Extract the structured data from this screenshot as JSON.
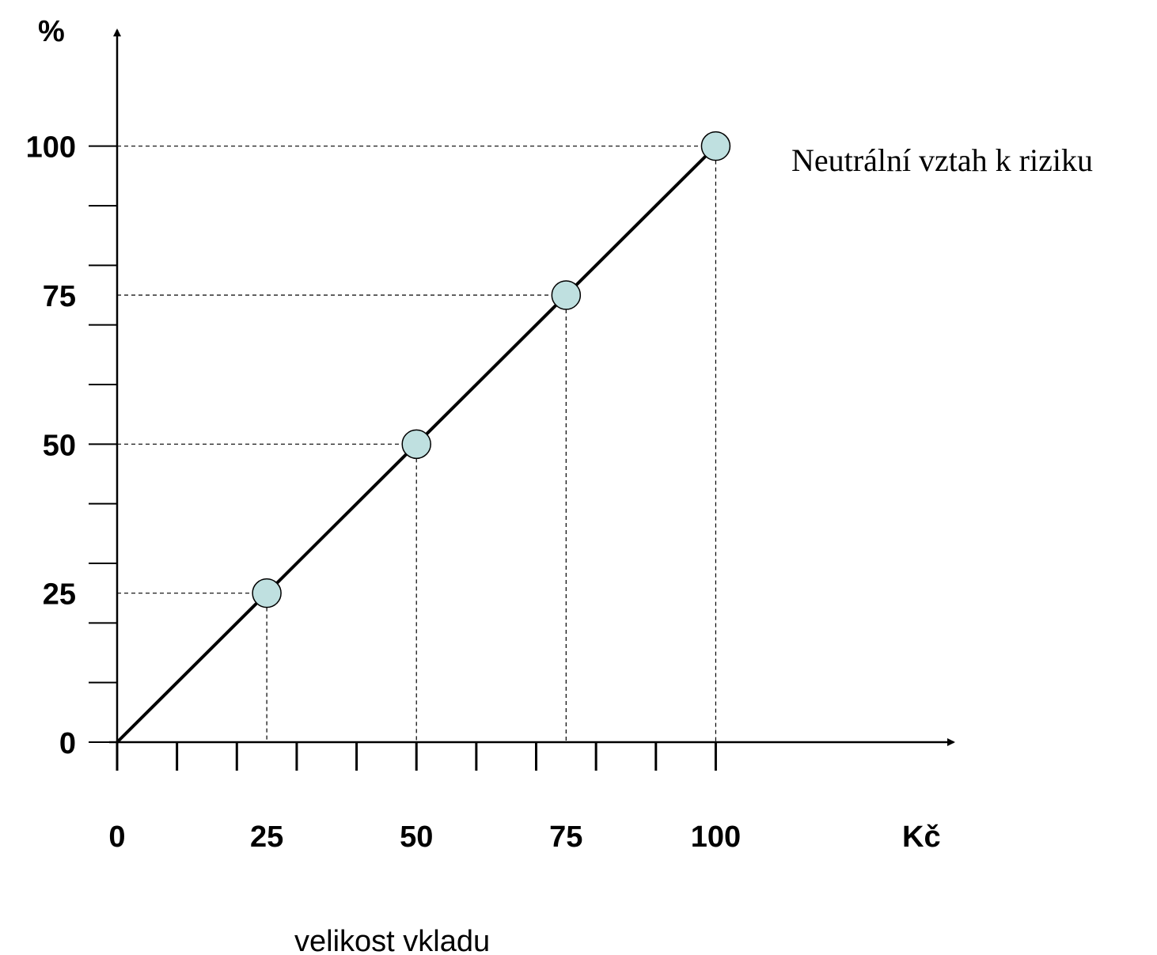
{
  "chart_data": {
    "type": "line",
    "x": [
      0,
      25,
      50,
      75,
      100
    ],
    "series": [
      {
        "values": [
          0,
          25,
          50,
          75,
          100
        ],
        "marked_points": [
          25,
          50,
          75,
          100
        ]
      }
    ],
    "xlim": [
      0,
      140
    ],
    "ylim": [
      0,
      120
    ],
    "x_ticks": [
      0,
      25,
      50,
      75,
      100
    ],
    "y_ticks": [
      0,
      25,
      50,
      75,
      100
    ],
    "x_minor_step": 10,
    "y_minor_step": 10,
    "x_unit": "Kč",
    "y_unit": "%",
    "xlabel": "velikost vkladu",
    "ylabel": "",
    "annotation": "Neutrální vztah k riziku",
    "guide_lines": true,
    "grid": false,
    "legend": "none",
    "colors": {
      "line": "#000000",
      "marker_fill": "#bfe0e0",
      "marker_stroke": "#000000"
    }
  }
}
